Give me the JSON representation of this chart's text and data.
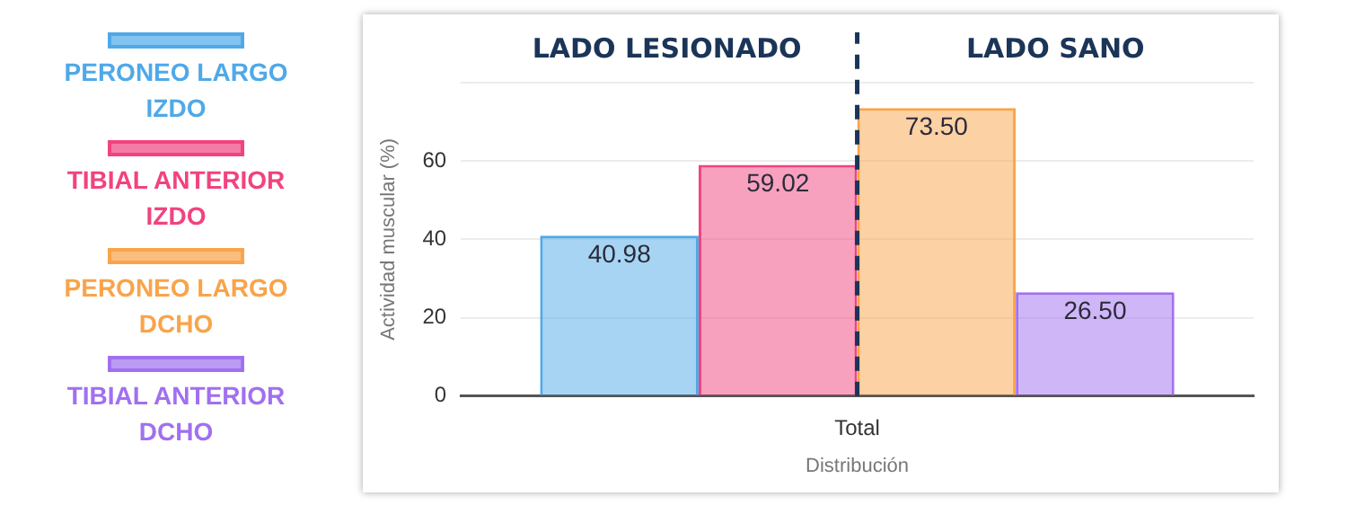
{
  "chart_data": {
    "type": "bar",
    "xlabel": "Distribución",
    "ylabel": "Actividad muscular (%)",
    "categories": [
      "Total"
    ],
    "series": [
      {
        "name": "PERONEO LARGO IZDO",
        "color": "#4fa9e8",
        "values": [
          40.98
        ],
        "value_labels": [
          "40.98"
        ]
      },
      {
        "name": "TIBIAL ANTERIOR IZDO",
        "color": "#f0437f",
        "values": [
          59.02
        ],
        "value_labels": [
          "59.02"
        ]
      },
      {
        "name": "PERONEO LARGO DCHO",
        "color": "#f9a34a",
        "values": [
          73.5
        ],
        "value_labels": [
          "73.50"
        ]
      },
      {
        "name": "TIBIAL ANTERIOR DCHO",
        "color": "#a070f0",
        "values": [
          26.5
        ],
        "value_labels": [
          "26.50"
        ]
      }
    ],
    "ylim": [
      0,
      80
    ],
    "yticks": [
      0,
      20,
      40,
      60,
      {
        "value": 80,
        "label": null
      }
    ],
    "ref_lines": [
      {
        "axis": "x",
        "value": "Total",
        "color": "#1a3558",
        "line_style": "dashed"
      }
    ],
    "annotations": [
      "LADO LESIONADO",
      "LADO SANO"
    ],
    "grid": "y",
    "legend": "left"
  }
}
